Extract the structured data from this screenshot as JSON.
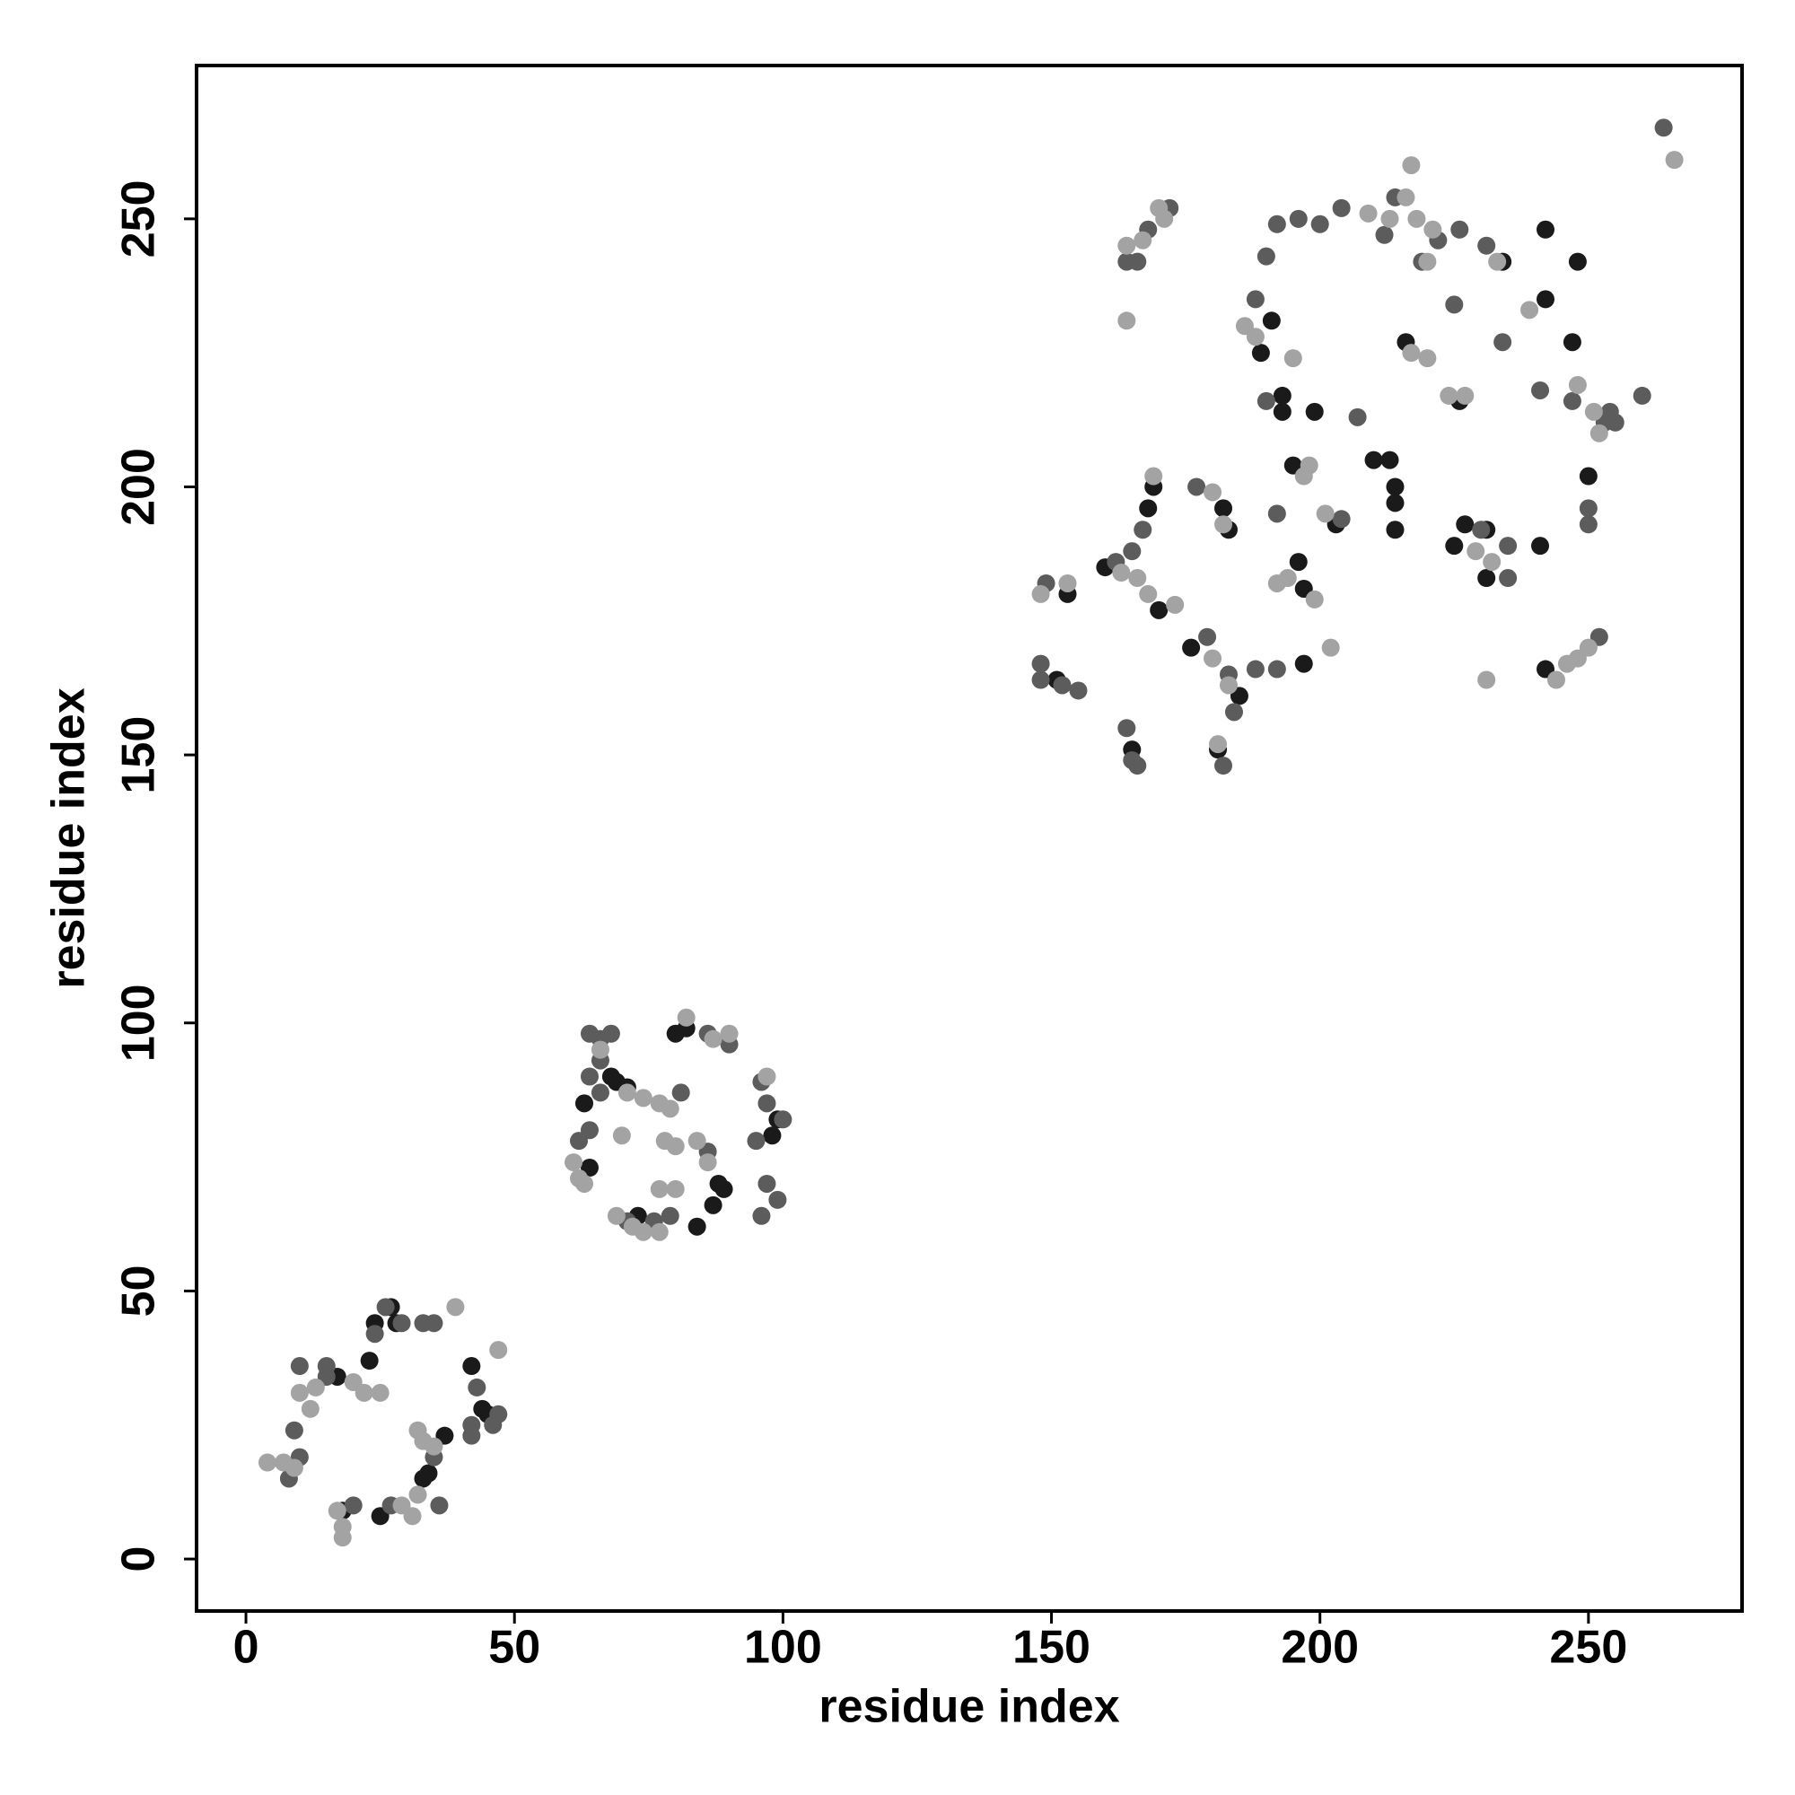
{
  "chart_data": {
    "type": "scatter",
    "xlabel": "residue index",
    "ylabel": "residue index",
    "xlim": [
      -9.2,
      278.6
    ],
    "ylim": [
      -9.7,
      278.6
    ],
    "xticks": [
      0,
      50,
      100,
      150,
      200,
      250
    ],
    "yticks": [
      0,
      50,
      100,
      150,
      200,
      250
    ],
    "grid": false,
    "series": [
      {
        "color": "#1a1a1a",
        "x": [
          27,
          28,
          24,
          23,
          17,
          42,
          37,
          34,
          33,
          45,
          18,
          25,
          44,
          63,
          64,
          68,
          69,
          73,
          80,
          84,
          87,
          89,
          99,
          98,
          71,
          82,
          88,
          151,
          153,
          160,
          165,
          168,
          169,
          170,
          176,
          181,
          182,
          183,
          185,
          189,
          191,
          193,
          193,
          195,
          196,
          197,
          197,
          199,
          203,
          210,
          213,
          214,
          214,
          214,
          216,
          226,
          227,
          231,
          231,
          234,
          242,
          242,
          242,
          248,
          250,
          247,
          241,
          225
        ],
        "y": [
          47,
          44,
          44,
          37,
          34,
          36,
          23,
          16,
          15,
          27,
          9,
          8,
          28,
          85,
          73,
          90,
          89,
          64,
          98,
          62,
          66,
          69,
          82,
          79,
          88,
          99,
          70,
          164,
          180,
          185,
          151,
          196,
          200,
          177,
          170,
          151,
          196,
          192,
          161,
          225,
          231,
          214,
          217,
          204,
          186,
          181,
          167,
          214,
          193,
          205,
          205,
          197,
          200,
          192,
          227,
          216,
          193,
          183,
          192,
          242,
          248,
          235,
          166,
          242,
          202,
          227,
          189,
          189
        ]
      },
      {
        "color": "#5c5c5c",
        "x": [
          26,
          33,
          24,
          10,
          15,
          9,
          10,
          8,
          35,
          36,
          27,
          20,
          42,
          47,
          42,
          46,
          15,
          29,
          43,
          35,
          64,
          64,
          66,
          68,
          66,
          62,
          64,
          66,
          71,
          76,
          86,
          96,
          97,
          95,
          97,
          96,
          99,
          79,
          90,
          81,
          100,
          86,
          148,
          148,
          149,
          152,
          155,
          164,
          165,
          166,
          167,
          165,
          162,
          164,
          166,
          168,
          172,
          177,
          179,
          182,
          184,
          188,
          190,
          190,
          188,
          192,
          192,
          196,
          200,
          204,
          204,
          207,
          212,
          214,
          219,
          222,
          225,
          226,
          230,
          231,
          235,
          235,
          241,
          247,
          250,
          250,
          252,
          253,
          255,
          260,
          264,
          254,
          234,
          192,
          183
        ],
        "y": [
          47,
          44,
          42,
          36,
          34,
          24,
          19,
          15,
          19,
          10,
          10,
          10,
          25,
          27,
          23,
          25,
          36,
          44,
          32,
          44,
          90,
          98,
          97,
          98,
          87,
          78,
          80,
          93,
          63,
          63,
          98,
          89,
          85,
          78,
          70,
          64,
          67,
          64,
          96,
          87,
          82,
          76,
          167,
          164,
          182,
          163,
          162,
          155,
          149,
          148,
          192,
          188,
          186,
          242,
          242,
          248,
          252,
          200,
          172,
          148,
          158,
          235,
          243,
          216,
          166,
          166,
          249,
          250,
          249,
          252,
          194,
          213,
          247,
          254,
          242,
          246,
          234,
          248,
          192,
          245,
          189,
          183,
          218,
          216,
          196,
          193,
          172,
          212,
          212,
          217,
          267,
          214,
          227,
          195,
          165
        ]
      },
      {
        "color": "#a3a3a3",
        "x": [
          39,
          47,
          4,
          7,
          9,
          10,
          13,
          20,
          22,
          25,
          32,
          33,
          35,
          32,
          31,
          17,
          18,
          18,
          29,
          12,
          61,
          62,
          63,
          66,
          70,
          71,
          74,
          77,
          79,
          78,
          80,
          84,
          86,
          82,
          87,
          90,
          97,
          72,
          74,
          77,
          77,
          80,
          69,
          148,
          153,
          164,
          164,
          167,
          170,
          171,
          169,
          163,
          166,
          168,
          173,
          180,
          181,
          182,
          183,
          180,
          186,
          188,
          192,
          194,
          197,
          198,
          201,
          202,
          199,
          209,
          213,
          216,
          217,
          218,
          221,
          220,
          217,
          224,
          227,
          229,
          232,
          233,
          239,
          244,
          246,
          248,
          250,
          248,
          251,
          252,
          266,
          231,
          220,
          195
        ],
        "y": [
          47,
          39,
          18,
          18,
          17,
          31,
          32,
          33,
          31,
          31,
          24,
          22,
          21,
          12,
          8,
          9,
          6,
          4,
          10,
          28,
          74,
          71,
          70,
          95,
          79,
          87,
          86,
          85,
          84,
          78,
          77,
          78,
          74,
          101,
          97,
          98,
          90,
          62,
          61,
          61,
          69,
          69,
          64,
          180,
          182,
          231,
          245,
          246,
          252,
          250,
          202,
          184,
          183,
          180,
          178,
          199,
          152,
          193,
          163,
          168,
          230,
          228,
          182,
          183,
          202,
          204,
          195,
          170,
          179,
          251,
          250,
          254,
          260,
          250,
          248,
          224,
          225,
          217,
          217,
          188,
          186,
          242,
          233,
          164,
          167,
          168,
          170,
          219,
          214,
          210,
          261,
          164,
          242,
          224
        ]
      }
    ]
  }
}
